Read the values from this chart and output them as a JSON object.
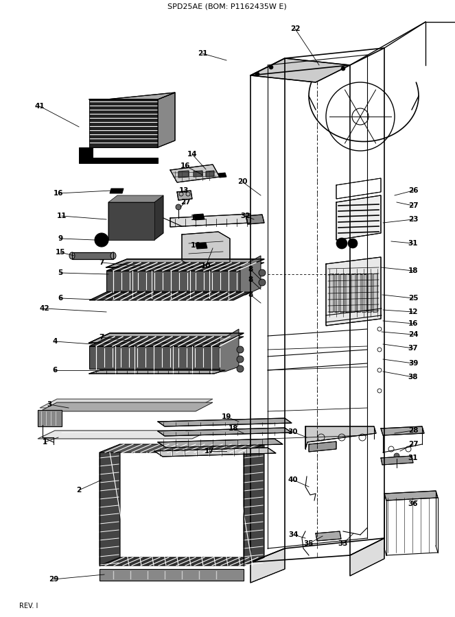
{
  "title": "SPD25AE (BOM: P1162435W E)",
  "rev_label": "REV. I",
  "bg_color": "#ffffff",
  "line_color": "#000000",
  "figsize": [
    6.63,
    9.0
  ],
  "dpi": 100
}
